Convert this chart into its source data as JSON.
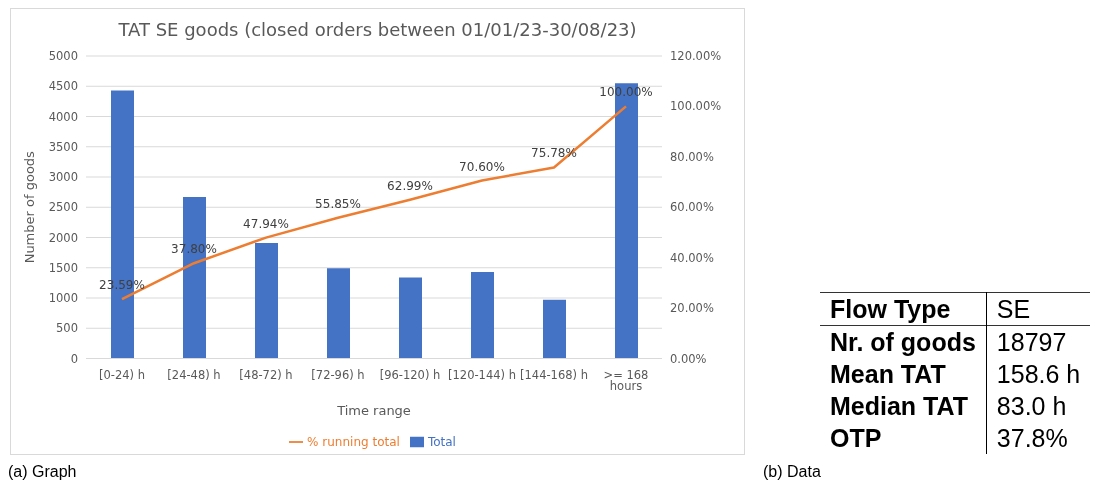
{
  "chart_data": [
    {
      "type": "bar",
      "title": "TAT SE goods (closed orders between 01/01/23-30/08/23)",
      "xlabel": "Time range",
      "ylabel": "Number of goods",
      "categories": [
        "[0-24) h",
        "[24-48) h",
        "[48-72) h",
        "[72-96) h",
        "[96-120) h",
        "[120-144) h",
        "[144-168) h",
        ">= 168 hours"
      ],
      "series": [
        {
          "name": "Total",
          "type": "bar",
          "color": "#4472c4",
          "values": [
            4430,
            2670,
            1910,
            1490,
            1340,
            1430,
            970,
            4550
          ]
        },
        {
          "name": "% running total",
          "type": "line",
          "axis": "y2",
          "color": "#ed7d31",
          "values": [
            23.59,
            37.8,
            47.94,
            55.85,
            62.99,
            70.6,
            75.78,
            100
          ],
          "value_labels": [
            "23.59%",
            "37.80%",
            "47.94%",
            "55.85%",
            "62.99%",
            "70.60%",
            "75.78%",
            "100.00%"
          ]
        }
      ],
      "ylim": [
        0,
        5000
      ],
      "yticks": [
        0,
        500,
        1000,
        1500,
        2000,
        2500,
        3000,
        3500,
        4000,
        4500,
        5000
      ],
      "y2lim": [
        0,
        120
      ],
      "y2ticks": [
        {
          "value": 0,
          "label": "0.00%"
        },
        {
          "value": 20,
          "label": "20.00%"
        },
        {
          "value": 40,
          "label": "40.00%"
        },
        {
          "value": 60,
          "label": "60.00%"
        },
        {
          "value": 80,
          "label": "80.00%"
        },
        {
          "value": 100,
          "label": "100.00%"
        },
        {
          "value": 120,
          "label": "120.00%"
        }
      ],
      "grid": "y",
      "legend": "bottom",
      "marker": "none",
      "annotations": [
        "(a) Graph"
      ]
    },
    {
      "type": "other",
      "categories": [
        "Flow Type",
        "Nr. of goods",
        "Mean TAT",
        "Median TAT",
        "OTP"
      ],
      "value_labels": [
        "SE",
        "18797",
        "158.6 h",
        "83.0 h",
        "37.8%"
      ],
      "annotations": [
        "(b) Data"
      ]
    }
  ]
}
